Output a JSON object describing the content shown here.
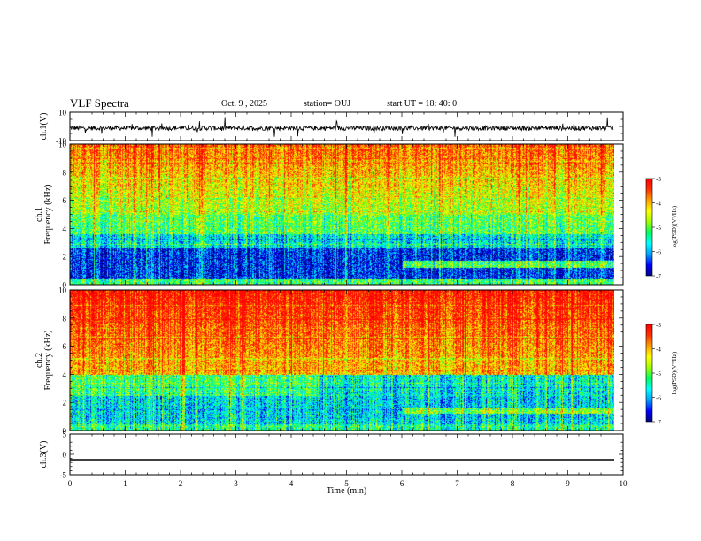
{
  "header": {
    "title": "VLF Spectra",
    "date": "Oct. 9 , 2025",
    "station": "station= OUJ",
    "start_ut": "start  UT =   18: 40: 0"
  },
  "colors": {
    "colormap": [
      "#000080",
      "#0000ff",
      "#00a0ff",
      "#00ffff",
      "#00ff60",
      "#a0ff00",
      "#ffff00",
      "#ffa000",
      "#ff3000",
      "#ff0000"
    ]
  },
  "chart_data": [
    {
      "type": "line",
      "id": "ch1-waveform",
      "ylabel": "ch.1(V)",
      "ylim": [
        -10,
        10
      ],
      "yticks": [
        "10",
        "-10"
      ],
      "xlim": [
        0,
        10
      ],
      "note_values": "noisy waveform around ~-1 V with spikes"
    },
    {
      "type": "heatmap",
      "id": "ch1-spectrogram",
      "ylabel_top": "ch.1",
      "ylabel": "Frequency (kHz)",
      "ylim": [
        0,
        10
      ],
      "yticks": [
        "0",
        "2",
        "4",
        "6",
        "8",
        "10"
      ],
      "xlim": [
        0,
        10
      ],
      "colorbar": {
        "label": "log(PSD)(V²/Hz)",
        "range": [
          -7,
          -3
        ],
        "ticks": [
          "-3",
          "-4",
          "-5",
          "-6",
          "-7"
        ]
      }
    },
    {
      "type": "heatmap",
      "id": "ch2-spectrogram",
      "ylabel_top": "ch.2",
      "ylabel": "Frequency (kHz)",
      "ylim": [
        0,
        10
      ],
      "yticks": [
        "0",
        "2",
        "4",
        "6",
        "8",
        "10"
      ],
      "xlim": [
        0,
        10
      ],
      "colorbar": {
        "label": "log(PSD)(V²/Hz)",
        "range": [
          -7,
          -3
        ],
        "ticks": [
          "-3",
          "-4",
          "-5",
          "-6",
          "-7"
        ]
      }
    },
    {
      "type": "line",
      "id": "ch3-waveform",
      "ylabel": "ch.3(V)",
      "ylim": [
        -5,
        5
      ],
      "yticks": [
        "5",
        "0",
        "-5"
      ],
      "xlim": [
        0,
        10
      ],
      "constant_value": -1.3
    }
  ],
  "xaxis": {
    "label": "Time (min)",
    "ticks": [
      "0",
      "1",
      "2",
      "3",
      "4",
      "5",
      "6",
      "7",
      "8",
      "9",
      "10"
    ]
  }
}
